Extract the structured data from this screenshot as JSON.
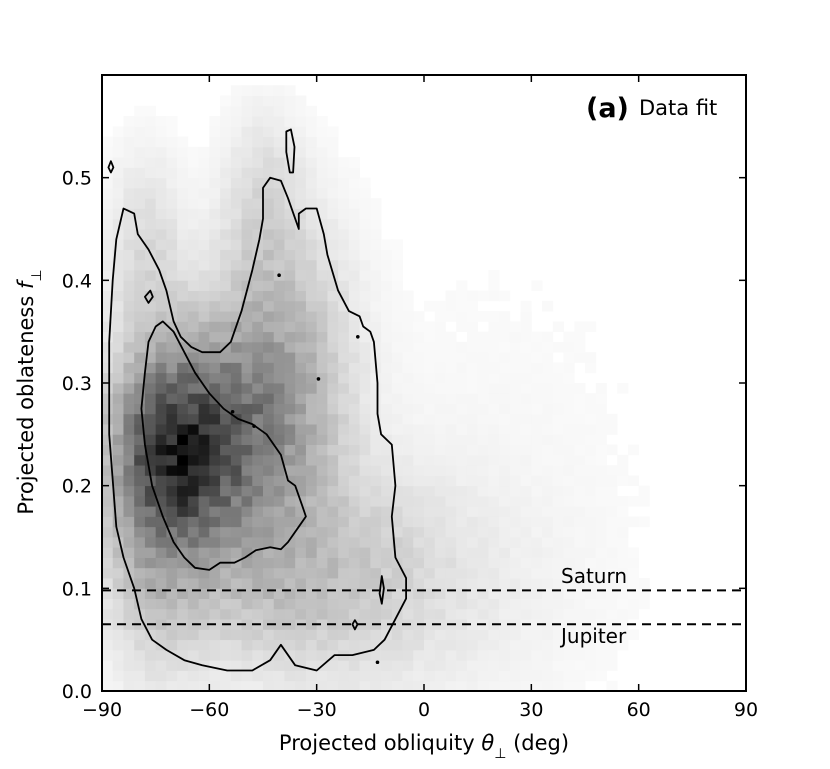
{
  "chart_data": {
    "type": "heatmap",
    "panel_label": "(a)",
    "title": "Data fit",
    "xlabel_text": "Projected obliquity ",
    "xlabel_symbol": "θ",
    "xlabel_subscript": "⊥",
    "xlabel_unit": " (deg)",
    "ylabel_text": "Projected oblateness ",
    "ylabel_symbol": "f",
    "ylabel_subscript": "⊥",
    "xlim": [
      -90,
      90
    ],
    "ylim": [
      0.0,
      0.6
    ],
    "x_ticks": [
      -90,
      -60,
      -30,
      0,
      30,
      60,
      90
    ],
    "x_tick_labels": [
      "−90",
      "−60",
      "−30",
      "0",
      "30",
      "60",
      "90"
    ],
    "y_ticks": [
      0.0,
      0.1,
      0.2,
      0.3,
      0.4,
      0.5
    ],
    "y_tick_labels": [
      "0.0",
      "0.1",
      "0.2",
      "0.3",
      "0.4",
      "0.5"
    ],
    "reference_lines": [
      {
        "name": "Saturn",
        "y": 0.098
      },
      {
        "name": "Jupiter",
        "y": 0.065
      }
    ],
    "colormap": "greys",
    "bin_width_x": 3,
    "bin_width_y": 0.01,
    "density_components": [
      {
        "x": -68,
        "y": 0.23,
        "sx": 11,
        "sy": 0.055,
        "w": 1.0
      },
      {
        "x": -52,
        "y": 0.26,
        "sx": 15,
        "sy": 0.07,
        "w": 0.55
      },
      {
        "x": -75,
        "y": 0.2,
        "sx": 9,
        "sy": 0.1,
        "w": 0.35
      },
      {
        "x": -40,
        "y": 0.33,
        "sx": 12,
        "sy": 0.09,
        "w": 0.25
      },
      {
        "x": -40,
        "y": 0.12,
        "sx": 25,
        "sy": 0.06,
        "w": 0.25
      },
      {
        "x": -45,
        "y": 0.47,
        "sx": 7,
        "sy": 0.06,
        "w": 0.12
      },
      {
        "x": -78,
        "y": 0.43,
        "sx": 7,
        "sy": 0.06,
        "w": 0.12
      },
      {
        "x": -15,
        "y": 0.1,
        "sx": 30,
        "sy": 0.08,
        "w": 0.07
      },
      {
        "x": 20,
        "y": 0.2,
        "sx": 35,
        "sy": 0.2,
        "w": 0.015
      }
    ],
    "contour_outer": [
      [
        -86,
        0.44
      ],
      [
        -84,
        0.47
      ],
      [
        -81,
        0.465
      ],
      [
        -80,
        0.445
      ],
      [
        -77,
        0.43
      ],
      [
        -74,
        0.41
      ],
      [
        -72,
        0.39
      ],
      [
        -70,
        0.36
      ],
      [
        -68,
        0.345
      ],
      [
        -65,
        0.335
      ],
      [
        -62,
        0.33
      ],
      [
        -57,
        0.33
      ],
      [
        -54,
        0.34
      ],
      [
        -51,
        0.37
      ],
      [
        -48,
        0.41
      ],
      [
        -46,
        0.44
      ],
      [
        -45,
        0.46
      ],
      [
        -45,
        0.49
      ],
      [
        -43,
        0.5
      ],
      [
        -40,
        0.497
      ],
      [
        -38,
        0.48
      ],
      [
        -36,
        0.46
      ],
      [
        -35,
        0.45
      ],
      [
        -35,
        0.465
      ],
      [
        -33,
        0.47
      ],
      [
        -30,
        0.47
      ],
      [
        -28,
        0.445
      ],
      [
        -27,
        0.425
      ],
      [
        -24,
        0.39
      ],
      [
        -21,
        0.37
      ],
      [
        -18,
        0.365
      ],
      [
        -17,
        0.355
      ],
      [
        -15,
        0.35
      ],
      [
        -14,
        0.34
      ],
      [
        -13,
        0.3
      ],
      [
        -13,
        0.27
      ],
      [
        -12,
        0.25
      ],
      [
        -9,
        0.24
      ],
      [
        -8,
        0.2
      ],
      [
        -9,
        0.17
      ],
      [
        -8,
        0.13
      ],
      [
        -5,
        0.11
      ],
      [
        -5,
        0.09
      ],
      [
        -8,
        0.07
      ],
      [
        -11,
        0.05
      ],
      [
        -14,
        0.04
      ],
      [
        -20,
        0.035
      ],
      [
        -25,
        0.035
      ],
      [
        -30,
        0.02
      ],
      [
        -36,
        0.025
      ],
      [
        -40,
        0.045
      ],
      [
        -43,
        0.03
      ],
      [
        -48,
        0.02
      ],
      [
        -55,
        0.02
      ],
      [
        -62,
        0.025
      ],
      [
        -67,
        0.03
      ],
      [
        -72,
        0.04
      ],
      [
        -76,
        0.05
      ],
      [
        -79,
        0.07
      ],
      [
        -81,
        0.1
      ],
      [
        -84,
        0.13
      ],
      [
        -86,
        0.16
      ],
      [
        -88,
        0.25
      ],
      [
        -88,
        0.34
      ],
      [
        -87,
        0.4
      ],
      [
        -86,
        0.44
      ]
    ],
    "contour_inner": [
      [
        -78,
        0.31
      ],
      [
        -77,
        0.34
      ],
      [
        -75,
        0.355
      ],
      [
        -73,
        0.36
      ],
      [
        -70,
        0.35
      ],
      [
        -67,
        0.33
      ],
      [
        -64,
        0.31
      ],
      [
        -60,
        0.29
      ],
      [
        -56,
        0.275
      ],
      [
        -52,
        0.265
      ],
      [
        -48,
        0.26
      ],
      [
        -44,
        0.25
      ],
      [
        -40,
        0.23
      ],
      [
        -38,
        0.205
      ],
      [
        -36,
        0.2
      ],
      [
        -34,
        0.18
      ],
      [
        -33,
        0.17
      ],
      [
        -35,
        0.16
      ],
      [
        -38,
        0.145
      ],
      [
        -40,
        0.138
      ],
      [
        -43,
        0.14
      ],
      [
        -47,
        0.137
      ],
      [
        -50,
        0.13
      ],
      [
        -53,
        0.125
      ],
      [
        -57,
        0.125
      ],
      [
        -60,
        0.118
      ],
      [
        -64,
        0.12
      ],
      [
        -67,
        0.13
      ],
      [
        -70,
        0.145
      ],
      [
        -73,
        0.17
      ],
      [
        -76,
        0.2
      ],
      [
        -78,
        0.24
      ],
      [
        -79,
        0.275
      ],
      [
        -78,
        0.31
      ]
    ],
    "contour_islands": [
      [
        [
          -37.5,
          0.505
        ],
        [
          -38.5,
          0.525
        ],
        [
          -38.5,
          0.545
        ],
        [
          -37.2,
          0.547
        ],
        [
          -36.2,
          0.53
        ],
        [
          -36.6,
          0.505
        ],
        [
          -37.5,
          0.505
        ]
      ],
      [
        [
          -87.5,
          0.505
        ],
        [
          -88.2,
          0.51
        ],
        [
          -87.5,
          0.516
        ],
        [
          -86.8,
          0.51
        ],
        [
          -87.5,
          0.505
        ]
      ],
      [
        [
          -77,
          0.378
        ],
        [
          -78,
          0.384
        ],
        [
          -76.5,
          0.39
        ],
        [
          -75.8,
          0.384
        ],
        [
          -77,
          0.378
        ]
      ],
      [
        [
          -19.3,
          0.06
        ],
        [
          -20,
          0.065
        ],
        [
          -19.3,
          0.069
        ],
        [
          -18.6,
          0.065
        ],
        [
          -19.3,
          0.06
        ]
      ],
      [
        [
          -11.8,
          0.085
        ],
        [
          -12.4,
          0.095
        ],
        [
          -11.8,
          0.112
        ],
        [
          -11.2,
          0.1
        ],
        [
          -11.8,
          0.085
        ]
      ]
    ],
    "contour_dots": [
      [
        -40.5,
        0.405
      ],
      [
        -29.5,
        0.304
      ],
      [
        -18.5,
        0.345
      ],
      [
        -53.5,
        0.272
      ],
      [
        -47.5,
        0.258
      ],
      [
        -13,
        0.028
      ]
    ]
  }
}
